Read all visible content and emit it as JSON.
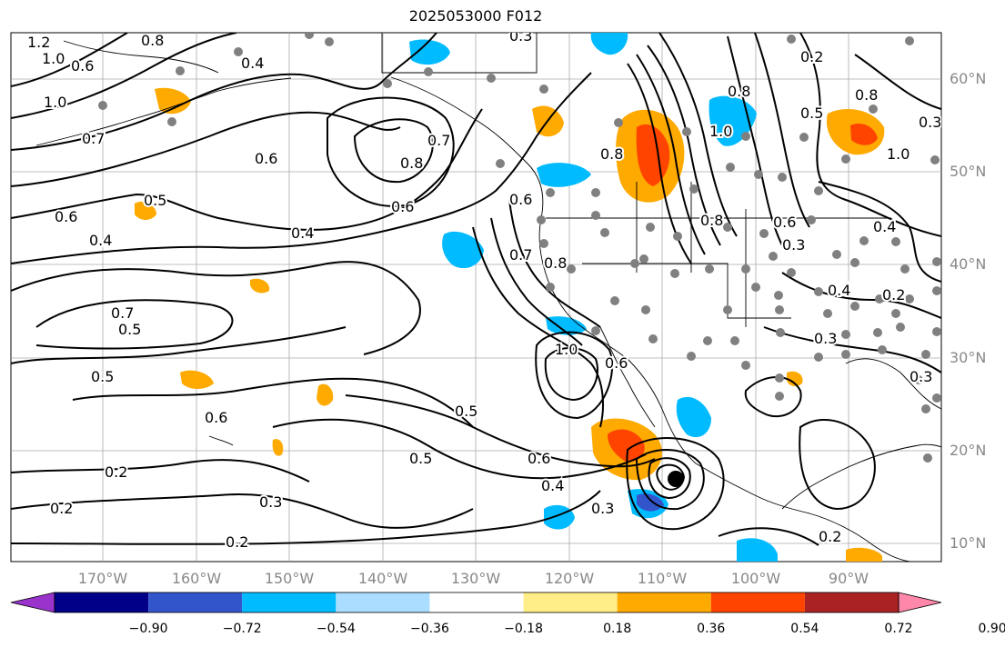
{
  "title": "2025053000 F012",
  "lat_labels": [
    "60°N",
    "50°N",
    "40°N",
    "30°N",
    "20°N",
    "10°N"
  ],
  "lon_labels": [
    "170°W",
    "160°W",
    "150°W",
    "140°W",
    "130°W",
    "120°W",
    "110°W",
    "100°W",
    "90°W"
  ],
  "colorbar": {
    "ticks": [
      "−0.90",
      "−0.72",
      "−0.54",
      "−0.36",
      "−0.18",
      "0.18",
      "0.36",
      "0.54",
      "0.72",
      "0.90"
    ],
    "colors": [
      "#9933cc",
      "#000088",
      "#3355cc",
      "#00bbff",
      "#aaddff",
      "#ffffff",
      "#ffee88",
      "#ffaa00",
      "#ff4400",
      "#aa2222",
      "#ff88aa"
    ]
  },
  "contour_labels": [
    "1.2",
    "1.0",
    "0.8",
    "0.6",
    "0.4",
    "0.5",
    "1.0",
    "0.7",
    "0.6",
    "0.5",
    "0.4",
    "0.6",
    "0.7",
    "0.5",
    "0.8",
    "0.6",
    "0.4",
    "0.7",
    "0.6",
    "0.5",
    "0.2",
    "0.2",
    "0.3",
    "0.2",
    "0.5",
    "0.6",
    "0.7",
    "0.4",
    "0.3",
    "1.0",
    "0.8",
    "0.6",
    "0.3",
    "0.8",
    "1.0",
    "0.8",
    "0.6",
    "0.3",
    "0.2",
    "0.4",
    "0.8",
    "0.5",
    "1.0",
    "0.3",
    "0.2",
    "0.4",
    "0.3",
    "0.2",
    "0.3",
    "0.8",
    "0.6"
  ],
  "colors": {
    "contour": "#000000",
    "grid": "#aaaaaa",
    "coast": "#000000",
    "dot": "#808080"
  }
}
